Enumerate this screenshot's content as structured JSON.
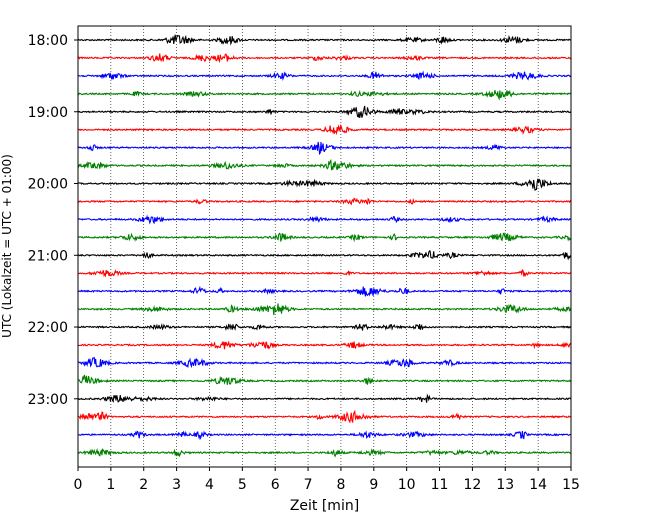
{
  "chart_data": {
    "type": "line",
    "title": "",
    "xlabel": "Zeit  [min]",
    "ylabel": "UTC (Lokalzeit = UTC + 01:00)",
    "xlim": [
      0,
      15
    ],
    "x_ticks": [
      0,
      1,
      2,
      3,
      4,
      5,
      6,
      7,
      8,
      9,
      10,
      11,
      12,
      13,
      14,
      15
    ],
    "y_tick_labels": [
      "18:00",
      "19:00",
      "20:00",
      "21:00",
      "22:00",
      "23:00"
    ],
    "y_tick_rows": [
      0,
      4,
      8,
      12,
      16,
      20
    ],
    "rows_per_hour": 4,
    "minutes_per_row": 15,
    "grid_x": true,
    "series_colors": [
      "#000000",
      "#ff0000",
      "#0000ff",
      "#008000"
    ],
    "series": [
      {
        "start": "18:00",
        "color": "#000000"
      },
      {
        "start": "18:15",
        "color": "#ff0000"
      },
      {
        "start": "18:30",
        "color": "#0000ff"
      },
      {
        "start": "18:45",
        "color": "#008000"
      },
      {
        "start": "19:00",
        "color": "#000000"
      },
      {
        "start": "19:15",
        "color": "#ff0000"
      },
      {
        "start": "19:30",
        "color": "#0000ff"
      },
      {
        "start": "19:45",
        "color": "#008000"
      },
      {
        "start": "20:00",
        "color": "#000000"
      },
      {
        "start": "20:15",
        "color": "#ff0000"
      },
      {
        "start": "20:30",
        "color": "#0000ff"
      },
      {
        "start": "20:45",
        "color": "#008000"
      },
      {
        "start": "21:00",
        "color": "#000000"
      },
      {
        "start": "21:15",
        "color": "#ff0000"
      },
      {
        "start": "21:30",
        "color": "#0000ff"
      },
      {
        "start": "21:45",
        "color": "#008000"
      },
      {
        "start": "22:00",
        "color": "#000000"
      },
      {
        "start": "22:15",
        "color": "#ff0000"
      },
      {
        "start": "22:30",
        "color": "#0000ff"
      },
      {
        "start": "22:45",
        "color": "#008000"
      },
      {
        "start": "23:00",
        "color": "#000000"
      },
      {
        "start": "23:15",
        "color": "#ff0000"
      },
      {
        "start": "23:30",
        "color": "#0000ff"
      },
      {
        "start": "23:45",
        "color": "#008000"
      }
    ]
  }
}
